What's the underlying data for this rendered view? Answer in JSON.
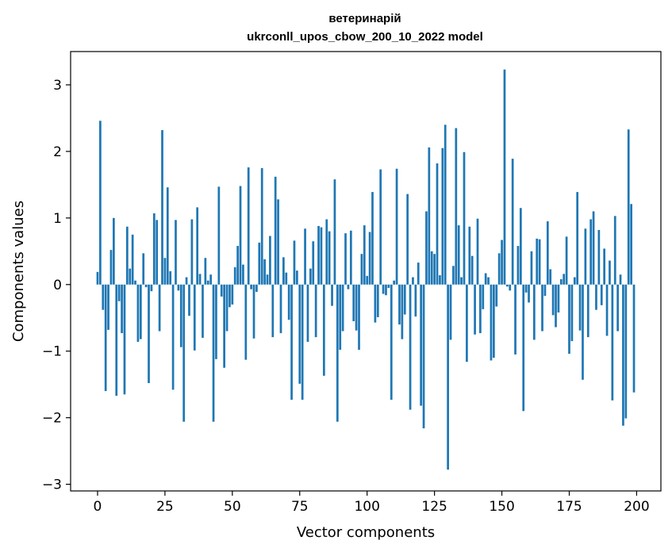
{
  "chart_data": {
    "type": "bar",
    "title_line1": "ветеринарій",
    "title_line2": "ukrconll_upos_cbow_200_10_2022 model",
    "xlabel": "Vector components",
    "ylabel": "Components values",
    "xlim": [
      -10,
      209
    ],
    "ylim": [
      -3.1,
      3.5
    ],
    "xticks": [
      0,
      25,
      50,
      75,
      100,
      125,
      150,
      175,
      200
    ],
    "xtick_labels": [
      "0",
      "25",
      "50",
      "75",
      "100",
      "125",
      "150",
      "175",
      "200"
    ],
    "yticks": [
      -3,
      -2,
      -1,
      0,
      1,
      2,
      3
    ],
    "ytick_labels": [
      "−3",
      "−2",
      "−1",
      "0",
      "1",
      "2",
      "3"
    ],
    "color": "#1f77b4",
    "grid": false,
    "values": [
      0.19,
      2.46,
      -0.38,
      -1.6,
      -0.68,
      0.52,
      1.0,
      -1.67,
      -0.25,
      -0.73,
      -1.65,
      0.87,
      0.24,
      0.75,
      0.06,
      -0.86,
      -0.82,
      0.47,
      -0.04,
      -1.48,
      -0.1,
      1.07,
      0.97,
      -0.7,
      2.32,
      0.4,
      1.46,
      0.2,
      -1.58,
      0.97,
      -0.09,
      -0.94,
      -2.06,
      0.11,
      -0.47,
      0.98,
      -0.99,
      1.16,
      0.16,
      -0.8,
      0.4,
      0.06,
      0.15,
      -2.06,
      -1.12,
      1.47,
      -0.18,
      -1.25,
      -0.7,
      -0.34,
      -0.3,
      0.26,
      0.58,
      1.48,
      0.3,
      -1.13,
      1.76,
      -0.07,
      -0.81,
      -0.11,
      0.63,
      1.75,
      0.38,
      0.15,
      0.73,
      -0.79,
      1.62,
      1.28,
      -0.73,
      0.41,
      0.18,
      -0.53,
      -1.73,
      0.66,
      0.21,
      -1.49,
      -1.73,
      0.84,
      -0.86,
      0.24,
      0.65,
      -0.79,
      0.88,
      0.86,
      -1.37,
      0.98,
      0.8,
      -0.32,
      1.58,
      -2.06,
      -0.98,
      -0.7,
      0.77,
      -0.07,
      0.81,
      -0.55,
      -0.69,
      -0.98,
      0.46,
      0.89,
      0.13,
      0.79,
      1.39,
      -0.57,
      -0.49,
      1.73,
      -0.14,
      -0.16,
      -0.05,
      -1.73,
      0.06,
      1.74,
      -0.6,
      -0.82,
      -0.45,
      1.36,
      -1.88,
      0.11,
      -0.48,
      0.33,
      -1.82,
      -2.16,
      1.1,
      2.06,
      0.5,
      0.46,
      1.82,
      0.14,
      2.05,
      2.4,
      -2.78,
      -0.83,
      0.28,
      2.35,
      0.89,
      0.11,
      1.99,
      -1.16,
      0.87,
      0.43,
      -0.75,
      0.99,
      -0.73,
      -0.37,
      0.17,
      0.11,
      -1.14,
      -1.1,
      -0.33,
      0.47,
      0.67,
      3.23,
      -0.03,
      -0.09,
      1.89,
      -1.05,
      0.58,
      1.15,
      -1.9,
      -0.12,
      -0.27,
      0.5,
      -0.83,
      0.69,
      0.68,
      -0.7,
      -0.17,
      0.95,
      0.23,
      -0.46,
      -0.64,
      -0.42,
      0.08,
      0.16,
      0.72,
      -1.04,
      -0.85,
      0.11,
      1.39,
      -0.69,
      -1.43,
      0.84,
      -0.79,
      0.98,
      1.1,
      -0.38,
      0.82,
      -0.31,
      0.54,
      -0.77,
      0.36,
      -1.74,
      1.03,
      -0.7,
      0.15,
      -2.12,
      -2.01,
      2.33,
      1.21,
      -1.62
    ]
  }
}
